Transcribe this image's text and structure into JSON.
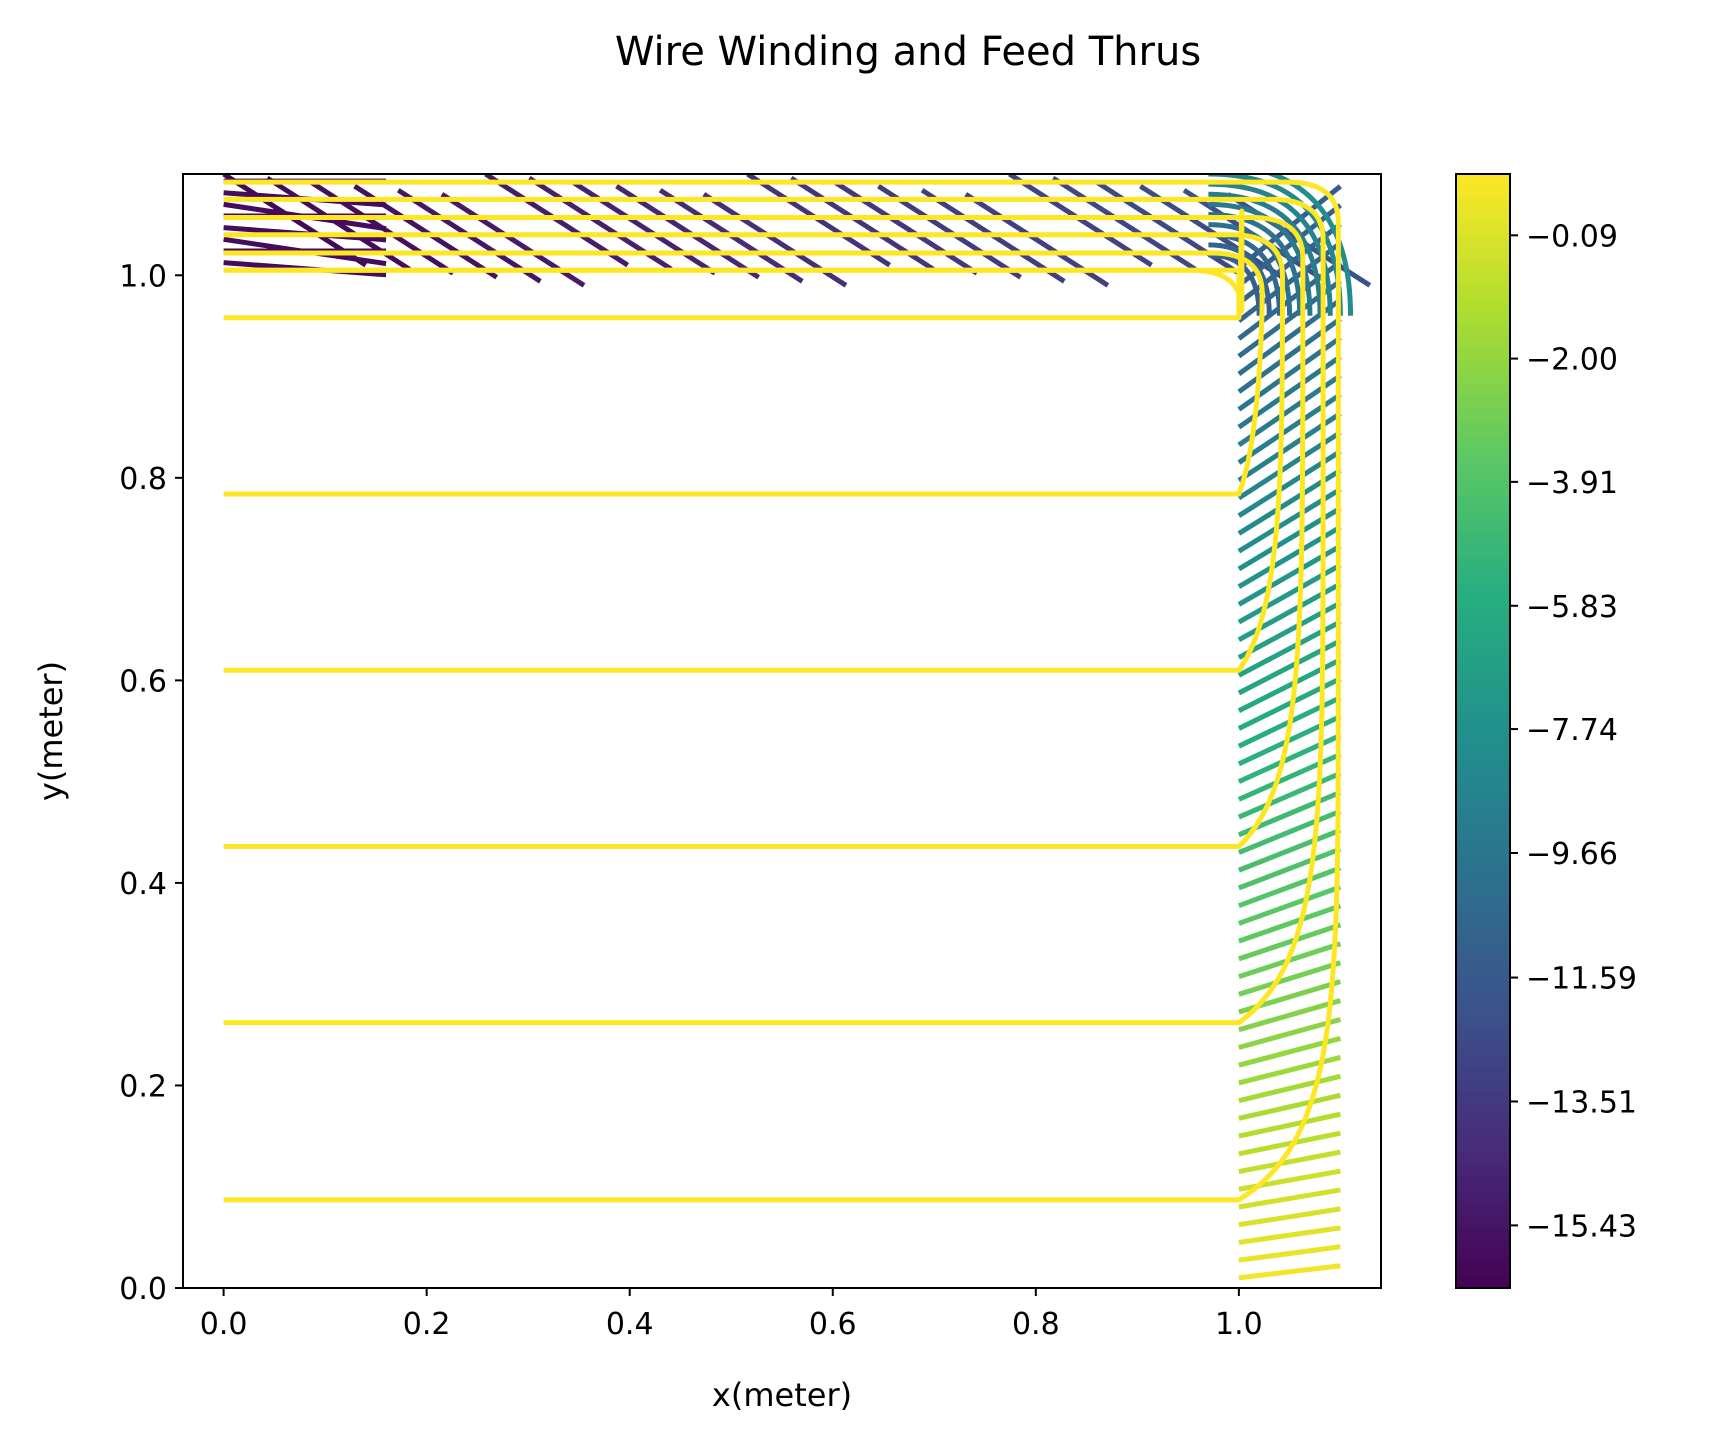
{
  "chart_data": {
    "type": "contour",
    "title": "Wire Winding and Feed Thrus",
    "xlabel": "x(meter)",
    "ylabel": "y(meter)",
    "xlim": [
      -0.04,
      1.14
    ],
    "ylim": [
      0.0,
      1.1
    ],
    "x_ticks": [
      0.0,
      0.2,
      0.4,
      0.6,
      0.8,
      1.0
    ],
    "x_tick_labels": [
      "0.0",
      "0.2",
      "0.4",
      "0.6",
      "0.8",
      "1.0"
    ],
    "y_ticks": [
      0.0,
      0.2,
      0.4,
      0.6,
      0.8,
      1.0
    ],
    "y_tick_labels": [
      "0.0",
      "0.2",
      "0.4",
      "0.6",
      "0.8",
      "1.0"
    ],
    "grid": false,
    "colormap": "viridis",
    "colorbar": {
      "range": [
        -16.4,
        0.86
      ],
      "ticks": [
        -0.09,
        -2.0,
        -3.91,
        -5.83,
        -7.74,
        -9.66,
        -11.59,
        -13.51,
        -15.43
      ],
      "tick_labels": [
        "−0.09",
        "−2.00",
        "−3.91",
        "−5.83",
        "−7.74",
        "−9.66",
        "−11.59",
        "−13.51",
        "−15.43"
      ],
      "level_count": 90
    },
    "wire_winding": {
      "color": "#fde725",
      "turn_corner_x": 1.0,
      "bottom_feed_y": [
        0.087,
        0.262,
        0.436,
        0.61,
        0.784,
        0.958
      ],
      "top_turn_y": [
        1.005,
        1.022,
        1.04,
        1.057,
        1.075,
        1.092
      ],
      "outer_turn_x": [
        1.003,
        1.023,
        1.043,
        1.063,
        1.083,
        1.098
      ]
    },
    "field_lines": {
      "top_region": {
        "x_range": [
          0.0,
          1.02
        ],
        "y_range": [
          1.0,
          1.1
        ],
        "level_colors": [
          "#440154",
          "#3b528b"
        ]
      },
      "right_region": {
        "x_range": [
          1.0,
          1.1
        ],
        "y_range": [
          0.0,
          1.1
        ],
        "level_colors": [
          "#31688e",
          "#21918c",
          "#35b779",
          "#90d743",
          "#d2e21b"
        ]
      }
    }
  }
}
